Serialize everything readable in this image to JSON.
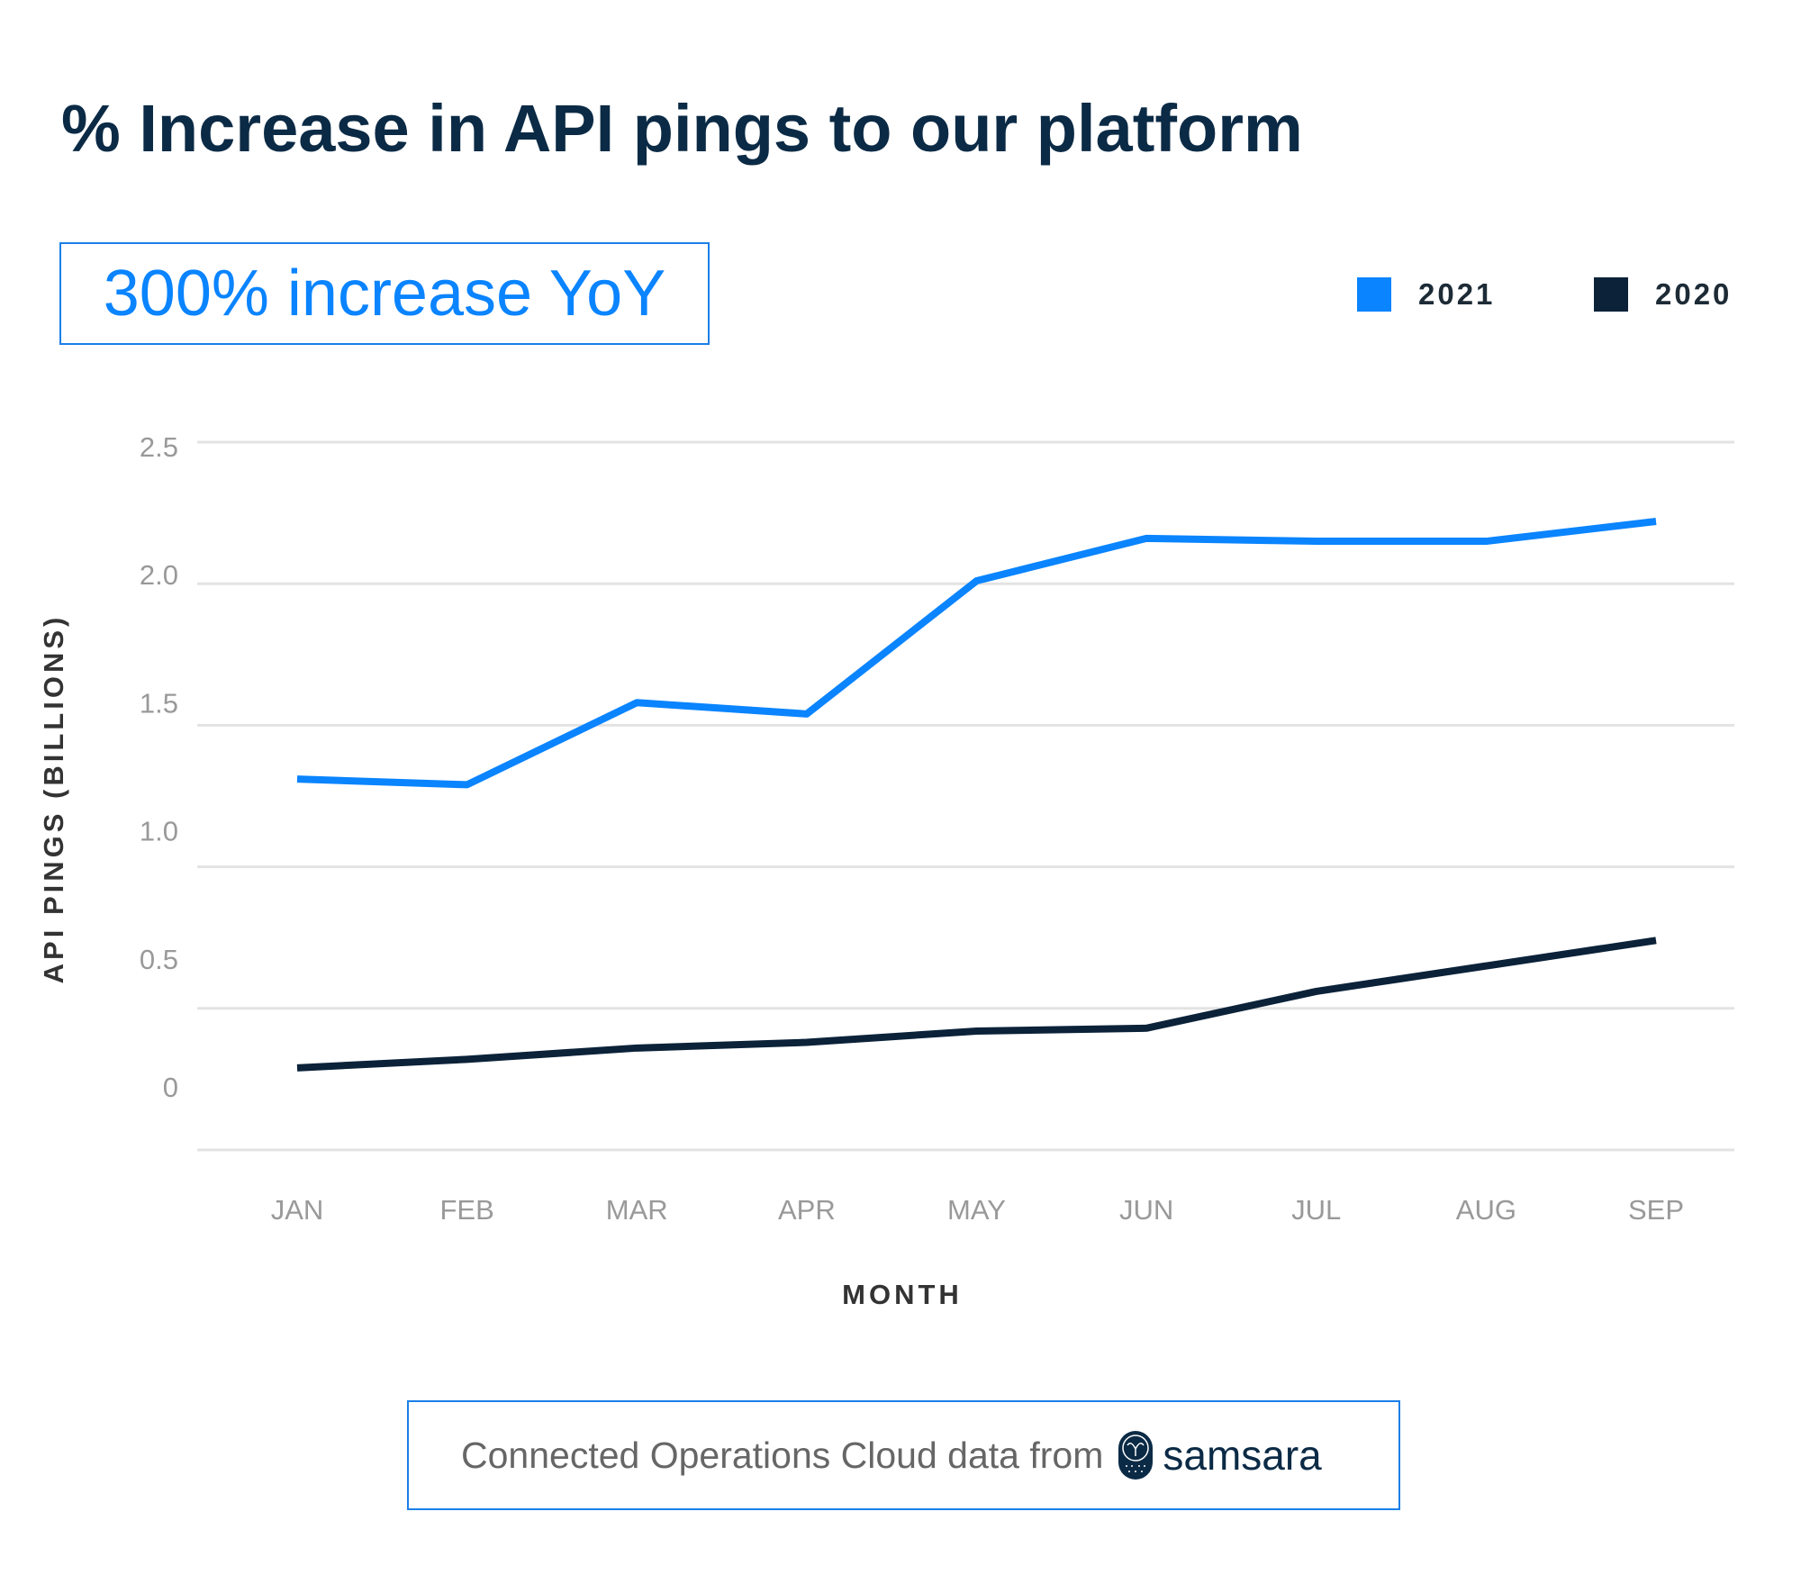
{
  "title": "% Increase in API pings to our platform",
  "badge": "300% increase YoY",
  "footer": {
    "text": "Connected Operations Cloud data from",
    "logo_text": "samsara",
    "logo_icon": "owl-icon"
  },
  "colors": {
    "2021": "#0a84ff",
    "2020": "#0b2239",
    "grid": "#e3e3e3",
    "title": "#0b2a45"
  },
  "chart_data": {
    "type": "line",
    "xlabel": "MONTH",
    "ylabel": "API PINGS (BILLIONS)",
    "categories": [
      "JAN",
      "FEB",
      "MAR",
      "APR",
      "MAY",
      "JUN",
      "JUL",
      "AUG",
      "SEP"
    ],
    "y_ticks": [
      "2.5",
      "2.0",
      "1.5",
      "1.0",
      "0.5",
      "0"
    ],
    "ylim": [
      0,
      2.5
    ],
    "grid": true,
    "legend_placement": "top-right",
    "series": [
      {
        "name": "2021",
        "color": "#0a84ff",
        "values": [
          1.31,
          1.29,
          1.58,
          1.54,
          2.01,
          2.16,
          2.15,
          2.15,
          2.22
        ]
      },
      {
        "name": "2020",
        "color": "#0b2239",
        "values": [
          0.29,
          0.32,
          0.36,
          0.38,
          0.42,
          0.43,
          0.56,
          0.65,
          0.74
        ]
      }
    ]
  }
}
